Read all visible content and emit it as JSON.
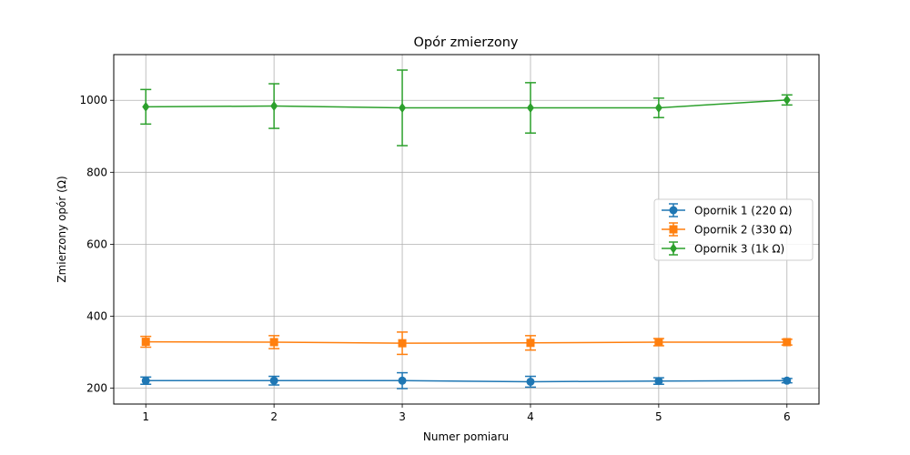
{
  "chart_data": {
    "type": "line",
    "title": "Opór zmierzony",
    "xlabel": "Numer pomiaru",
    "ylabel": "Zmierzony opór (Ω)",
    "x": [
      1,
      2,
      3,
      4,
      5,
      6
    ],
    "xticks": [
      "1",
      "2",
      "3",
      "4",
      "5",
      "6"
    ],
    "yticks": [
      "200",
      "400",
      "600",
      "800",
      "1000"
    ],
    "xlim": [
      0.75,
      6.25
    ],
    "ylim": [
      156,
      1127
    ],
    "grid": true,
    "legend_position": "center-right",
    "series": [
      {
        "name": "Opornik 1 (220 Ω)",
        "color": "#1f77b4",
        "marker": "circle",
        "values": [
          221,
          221,
          221,
          218,
          220,
          221
        ],
        "errors": [
          10,
          12,
          22,
          15,
          9,
          6
        ]
      },
      {
        "name": "Opornik 2 (330 Ω)",
        "color": "#ff7f0e",
        "marker": "square",
        "values": [
          329,
          328,
          325,
          326,
          328,
          328
        ],
        "errors": [
          15,
          18,
          31,
          20,
          10,
          8
        ]
      },
      {
        "name": "Opornik 3 (1k Ω)",
        "color": "#2ca02c",
        "marker": "diamond",
        "values": [
          982,
          984,
          979,
          979,
          979,
          1001
        ],
        "errors": [
          48,
          62,
          105,
          70,
          27,
          14
        ]
      }
    ]
  }
}
